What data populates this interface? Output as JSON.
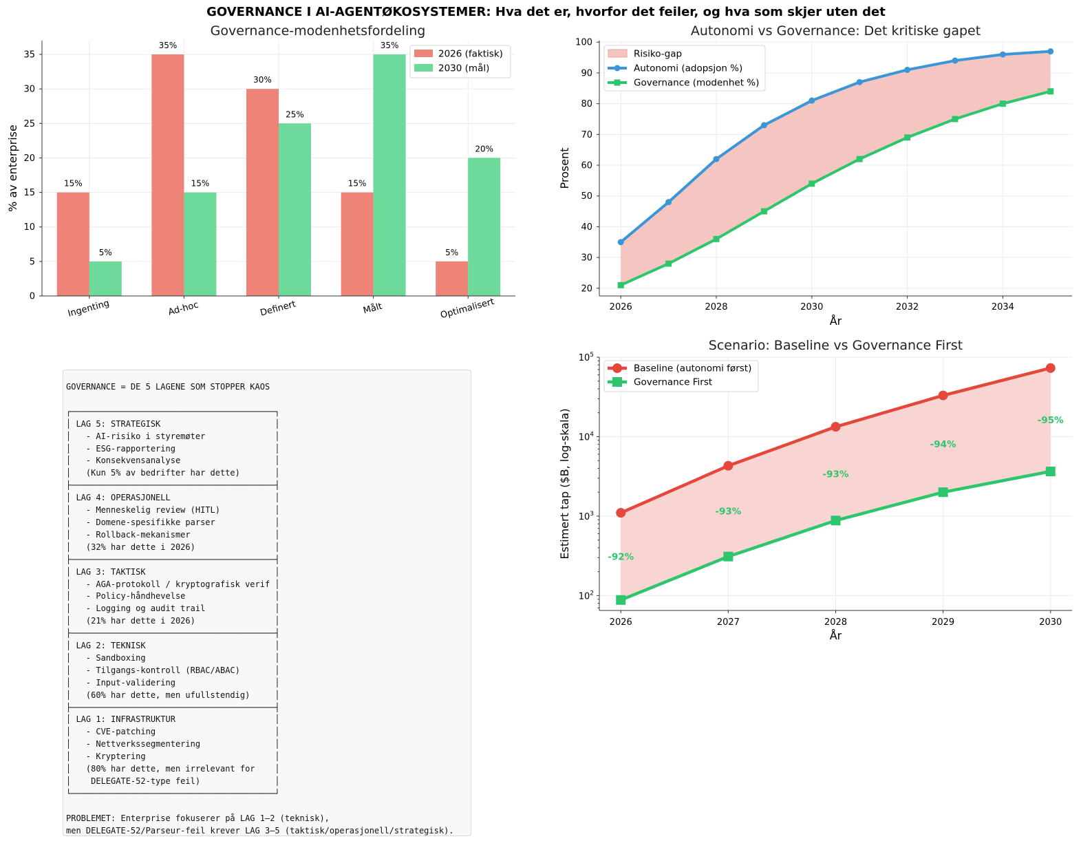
{
  "title": "GOVERNANCE I AI-AGENTØKOSYSTEMER: Hva det er, hvorfor det feiler, og hva som skjer uten det",
  "chart_data": [
    {
      "type": "bar",
      "title": "Governance-modenhetsfordeling",
      "xlabel": "",
      "ylabel": "% av enterprise",
      "categories": [
        "Ingenting",
        "Ad-hoc",
        "Definert",
        "Målt",
        "Optimalisert"
      ],
      "series": [
        {
          "name": "2026 (faktisk)",
          "values": [
            15,
            35,
            30,
            15,
            5
          ],
          "labels": [
            "15%",
            "35%",
            "30%",
            "15%",
            "5%"
          ],
          "color": "#ee8377"
        },
        {
          "name": "2030 (mål)",
          "values": [
            5,
            15,
            25,
            35,
            20
          ],
          "labels": [
            "5%",
            "15%",
            "25%",
            "35%",
            "20%"
          ],
          "color": "#6dd99a"
        }
      ],
      "ylim": [
        0,
        37
      ],
      "yticks": [
        0,
        5,
        10,
        15,
        20,
        25,
        30,
        35
      ],
      "grid": true,
      "legend": "top-right"
    },
    {
      "type": "line",
      "title": "Autonomi vs Governance: Det kritiske gapet",
      "xlabel": "År",
      "ylabel": "Prosent",
      "x": [
        2026,
        2027,
        2028,
        2029,
        2030,
        2031,
        2032,
        2033,
        2034,
        2035
      ],
      "xticks": [
        2026,
        2028,
        2030,
        2032,
        2034
      ],
      "series": [
        {
          "name": "Autonomi (adopsjon %)",
          "values": [
            35,
            48,
            62,
            73,
            81,
            87,
            91,
            94,
            96,
            97
          ],
          "color": "#3a96d8",
          "marker": "circle"
        },
        {
          "name": "Governance (modenhet %)",
          "values": [
            21,
            28,
            36,
            45,
            54,
            62,
            69,
            75,
            80,
            84
          ],
          "color": "#2ec66c",
          "marker": "square"
        }
      ],
      "fill_name": "Risiko-gap",
      "fill_color": "#f5c6c1",
      "xlim": [
        2025.55,
        2035.45
      ],
      "ylim": [
        17.5,
        100.5
      ],
      "yticks": [
        20,
        30,
        40,
        50,
        60,
        70,
        80,
        90,
        100
      ],
      "grid": true,
      "legend": "top-left"
    },
    {
      "type": "line",
      "title": "Scenario: Baseline vs Governance First",
      "xlabel": "År",
      "ylabel": "Estimert tap ($B, log-skala)",
      "yscale": "log",
      "x": [
        2026,
        2027,
        2028,
        2029,
        2030
      ],
      "series": [
        {
          "name": "Baseline (autonomi først)",
          "values": [
            1100,
            4300,
            13300,
            33000,
            73000
          ],
          "color": "#e4483b",
          "marker": "circle"
        },
        {
          "name": "Governance First",
          "values": [
            88,
            310,
            880,
            2000,
            3650
          ],
          "color": "#2ec66c",
          "marker": "square"
        }
      ],
      "annotations": [
        "-92%",
        "-93%",
        "-93%",
        "-94%",
        "-95%"
      ],
      "fill_color": "#f8d5d2",
      "xlim": [
        2025.8,
        2030.2
      ],
      "ylim": [
        65,
        100000
      ],
      "yticks": [
        100,
        1000,
        10000,
        100000
      ],
      "ytick_labels": [
        [
          "10",
          "2"
        ],
        [
          "10",
          "3"
        ],
        [
          "10",
          "4"
        ],
        [
          "10",
          "5"
        ]
      ],
      "grid": true,
      "legend": "top-left"
    }
  ],
  "text_panel": "GOVERNANCE = DE 5 LAGENE SOM STOPPER KAOS\n\n┌─────────────────────────────────────────┐\n│ LAG 5: STRATEGISK                       │\n│   - AI-risiko i styremøter              │\n│   - ESG-rapportering                    │\n│   - Konsekvensanalyse                   │\n│   (Kun 5% av bedrifter har dette)       │\n├─────────────────────────────────────────┤\n│ LAG 4: OPERASJONELL                     │\n│   - Menneskelig review (HITL)           │\n│   - Domene-spesifikke parser            │\n│   - Rollback-mekanismer                 │\n│   (32% har dette i 2026)                │\n├─────────────────────────────────────────┤\n│ LAG 3: TAKTISK                          │\n│   - AGA-protokoll / kryptografisk verif │\n│   - Policy-håndhevelse                  │\n│   - Logging og audit trail              │\n│   (21% har dette i 2026)                │\n├─────────────────────────────────────────┤\n│ LAG 2: TEKNISK                          │\n│   - Sandboxing                          │\n│   - Tilgangs-kontroll (RBAC/ABAC)       │\n│   - Input-validering                    │\n│   (60% har dette, men ufullstendig)     │\n├─────────────────────────────────────────┤\n│ LAG 1: INFRASTRUKTUR                    │\n│   - CVE-patching                        │\n│   - Nettverkssegmentering               │\n│   - Kryptering                          │\n│   (80% har dette, men irrelevant for    │\n│    DELEGATE-52-type feil)               │\n└─────────────────────────────────────────┘\n\nPROBLEMET: Enterprise fokuserer på LAG 1–2 (teknisk),\nmen DELEGATE-52/Parseur-feil krever LAG 3–5 (taktisk/operasjonell/strategisk)."
}
